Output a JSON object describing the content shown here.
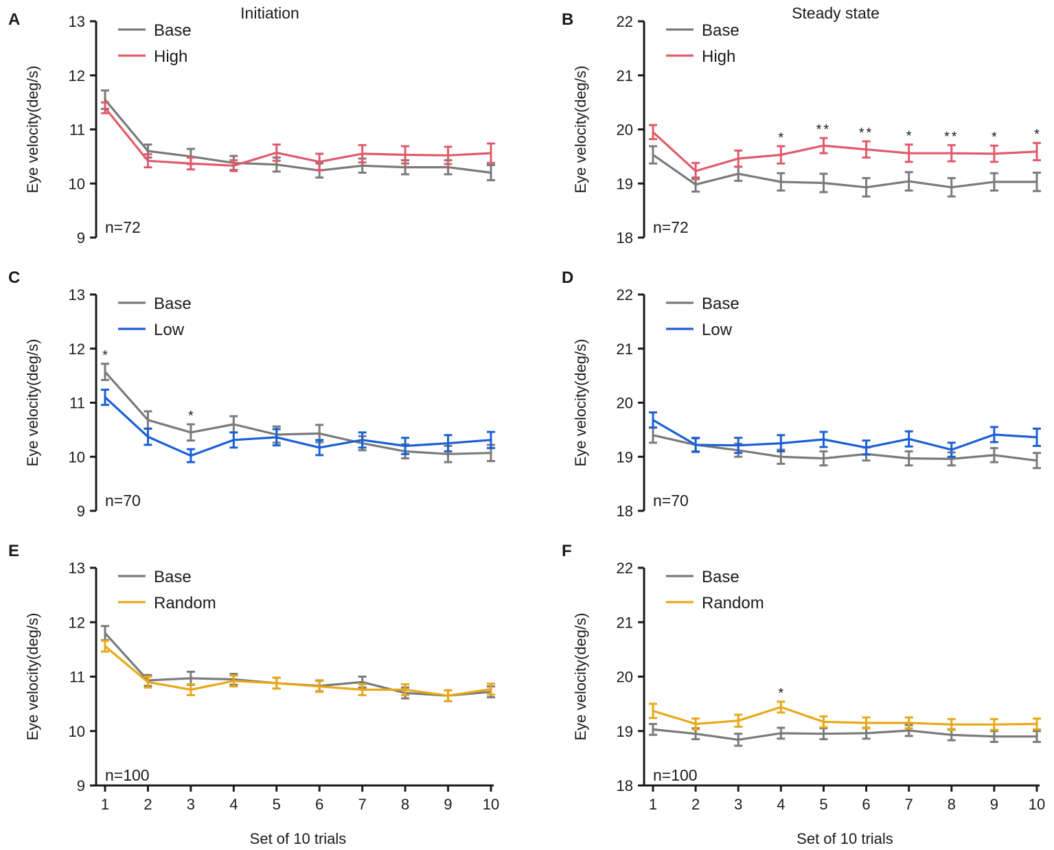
{
  "colors": {
    "base": "#7a7a7a",
    "high": "#e05a6a",
    "low": "#1a5fd6",
    "random": "#e8a817",
    "axis": "#1a1a1a"
  },
  "column_titles": [
    "Initiation",
    "Steady state"
  ],
  "chart_data": [
    {
      "type": "line",
      "panel": "A",
      "xlabel": "",
      "ylabel": "Eye velocity(deg/s)",
      "x": [
        1,
        2,
        3,
        4,
        5,
        6,
        7,
        8,
        9,
        10
      ],
      "xticks": [],
      "ylim": [
        9,
        13
      ],
      "yticks": [
        "9",
        "10",
        "11",
        "12",
        "13"
      ],
      "legend_position": "top-left",
      "n_label": "n=72",
      "series": [
        {
          "name": "Base",
          "color_key": "base",
          "values": [
            11.55,
            10.6,
            10.5,
            10.38,
            10.35,
            10.24,
            10.33,
            10.3,
            10.3,
            10.2
          ],
          "errors": [
            0.17,
            0.12,
            0.14,
            0.13,
            0.13,
            0.13,
            0.13,
            0.13,
            0.13,
            0.14
          ]
        },
        {
          "name": "High",
          "color_key": "high",
          "values": [
            11.4,
            10.42,
            10.37,
            10.33,
            10.57,
            10.4,
            10.55,
            10.53,
            10.52,
            10.56
          ],
          "errors": [
            0.1,
            0.12,
            0.11,
            0.1,
            0.15,
            0.15,
            0.16,
            0.16,
            0.16,
            0.18
          ]
        }
      ],
      "annotations": []
    },
    {
      "type": "line",
      "panel": "B",
      "xlabel": "",
      "ylabel": "Eye velocity(deg/s)",
      "x": [
        1,
        2,
        3,
        4,
        5,
        6,
        7,
        8,
        9,
        10
      ],
      "xticks": [],
      "ylim": [
        18,
        22
      ],
      "yticks": [
        "18",
        "19",
        "20",
        "21",
        "22"
      ],
      "legend_position": "top-left",
      "n_label": "n=72",
      "series": [
        {
          "name": "Base",
          "color_key": "base",
          "values": [
            19.53,
            18.98,
            19.18,
            19.03,
            19.01,
            18.93,
            19.04,
            18.93,
            19.03,
            19.03
          ],
          "errors": [
            0.16,
            0.13,
            0.13,
            0.16,
            0.17,
            0.17,
            0.17,
            0.17,
            0.16,
            0.17
          ]
        },
        {
          "name": "High",
          "color_key": "high",
          "values": [
            19.95,
            19.23,
            19.46,
            19.53,
            19.7,
            19.63,
            19.56,
            19.56,
            19.55,
            19.59
          ],
          "errors": [
            0.13,
            0.15,
            0.15,
            0.16,
            0.14,
            0.15,
            0.16,
            0.15,
            0.15,
            0.16
          ]
        }
      ],
      "annotations": [
        {
          "x": 4,
          "text": "*"
        },
        {
          "x": 5,
          "text": "**"
        },
        {
          "x": 6,
          "text": "**"
        },
        {
          "x": 7,
          "text": "*"
        },
        {
          "x": 8,
          "text": "**"
        },
        {
          "x": 9,
          "text": "*"
        },
        {
          "x": 10,
          "text": "*"
        }
      ]
    },
    {
      "type": "line",
      "panel": "C",
      "xlabel": "",
      "ylabel": "Eye velocity(deg/s)",
      "x": [
        1,
        2,
        3,
        4,
        5,
        6,
        7,
        8,
        9,
        10
      ],
      "xticks": [],
      "ylim": [
        9,
        13
      ],
      "yticks": [
        "9",
        "10",
        "11",
        "12",
        "13"
      ],
      "legend_position": "top-left",
      "n_label": "n=70",
      "series": [
        {
          "name": "Base",
          "color_key": "base",
          "values": [
            11.57,
            10.68,
            10.45,
            10.6,
            10.41,
            10.43,
            10.25,
            10.1,
            10.05,
            10.07
          ],
          "errors": [
            0.15,
            0.16,
            0.15,
            0.15,
            0.15,
            0.16,
            0.13,
            0.13,
            0.15,
            0.15
          ]
        },
        {
          "name": "Low",
          "color_key": "low",
          "values": [
            11.1,
            10.37,
            10.02,
            10.31,
            10.36,
            10.17,
            10.31,
            10.2,
            10.25,
            10.31
          ],
          "errors": [
            0.14,
            0.15,
            0.12,
            0.14,
            0.15,
            0.14,
            0.14,
            0.15,
            0.15,
            0.15
          ]
        }
      ],
      "annotations": [
        {
          "x": 1,
          "text": "*"
        },
        {
          "x": 3,
          "text": "*"
        }
      ]
    },
    {
      "type": "line",
      "panel": "D",
      "xlabel": "",
      "ylabel": "Eye velocity(deg/s)",
      "x": [
        1,
        2,
        3,
        4,
        5,
        6,
        7,
        8,
        9,
        10
      ],
      "xticks": [],
      "ylim": [
        18,
        22
      ],
      "yticks": [
        "18",
        "19",
        "20",
        "21",
        "22"
      ],
      "legend_position": "top-left",
      "n_label": "n=70",
      "series": [
        {
          "name": "Base",
          "color_key": "base",
          "values": [
            19.4,
            19.22,
            19.12,
            19.0,
            18.97,
            19.05,
            18.97,
            18.96,
            19.03,
            18.93
          ],
          "errors": [
            0.14,
            0.12,
            0.12,
            0.13,
            0.13,
            0.12,
            0.13,
            0.12,
            0.13,
            0.14
          ]
        },
        {
          "name": "Low",
          "color_key": "low",
          "values": [
            19.68,
            19.22,
            19.21,
            19.25,
            19.32,
            19.17,
            19.33,
            19.13,
            19.41,
            19.36
          ],
          "errors": [
            0.14,
            0.13,
            0.14,
            0.15,
            0.14,
            0.13,
            0.14,
            0.13,
            0.14,
            0.16
          ]
        }
      ],
      "annotations": []
    },
    {
      "type": "line",
      "panel": "E",
      "xlabel": "Set of 10 trials",
      "ylabel": "Eye velocity(deg/s)",
      "x": [
        1,
        2,
        3,
        4,
        5,
        6,
        7,
        8,
        9,
        10
      ],
      "xticks": [
        "1",
        "2",
        "3",
        "4",
        "5",
        "6",
        "7",
        "8",
        "9",
        "10"
      ],
      "ylim": [
        9,
        13
      ],
      "yticks": [
        "9",
        "10",
        "11",
        "12",
        "13"
      ],
      "legend_position": "top-left",
      "n_label": "n=100",
      "series": [
        {
          "name": "Base",
          "color_key": "base",
          "values": [
            11.8,
            10.93,
            10.97,
            10.95,
            10.88,
            10.83,
            10.9,
            10.7,
            10.65,
            10.72
          ],
          "errors": [
            0.13,
            0.1,
            0.12,
            0.1,
            0.1,
            0.1,
            0.1,
            0.1,
            0.1,
            0.1
          ]
        },
        {
          "name": "Random",
          "color_key": "random",
          "values": [
            11.56,
            10.9,
            10.76,
            10.92,
            10.88,
            10.82,
            10.76,
            10.76,
            10.65,
            10.77
          ],
          "errors": [
            0.1,
            0.1,
            0.1,
            0.1,
            0.1,
            0.1,
            0.1,
            0.1,
            0.1,
            0.1
          ]
        }
      ],
      "annotations": []
    },
    {
      "type": "line",
      "panel": "F",
      "xlabel": "Set of 10 trials",
      "ylabel": "Eye velocity(deg/s)",
      "x": [
        1,
        2,
        3,
        4,
        5,
        6,
        7,
        8,
        9,
        10
      ],
      "xticks": [
        "1",
        "2",
        "3",
        "4",
        "5",
        "6",
        "7",
        "8",
        "9",
        "10"
      ],
      "ylim": [
        18,
        22
      ],
      "yticks": [
        "18",
        "19",
        "20",
        "21",
        "22"
      ],
      "legend_position": "top-left",
      "n_label": "n=100",
      "series": [
        {
          "name": "Base",
          "color_key": "base",
          "values": [
            19.03,
            18.95,
            18.84,
            18.96,
            18.95,
            18.96,
            19.01,
            18.93,
            18.9,
            18.9
          ],
          "errors": [
            0.1,
            0.1,
            0.11,
            0.1,
            0.1,
            0.1,
            0.1,
            0.1,
            0.1,
            0.1
          ]
        },
        {
          "name": "Random",
          "color_key": "random",
          "values": [
            19.37,
            19.13,
            19.19,
            19.44,
            19.17,
            19.15,
            19.15,
            19.12,
            19.12,
            19.13
          ],
          "errors": [
            0.13,
            0.1,
            0.11,
            0.1,
            0.1,
            0.1,
            0.1,
            0.1,
            0.1,
            0.1
          ]
        }
      ],
      "annotations": [
        {
          "x": 4,
          "text": "*"
        }
      ]
    }
  ]
}
